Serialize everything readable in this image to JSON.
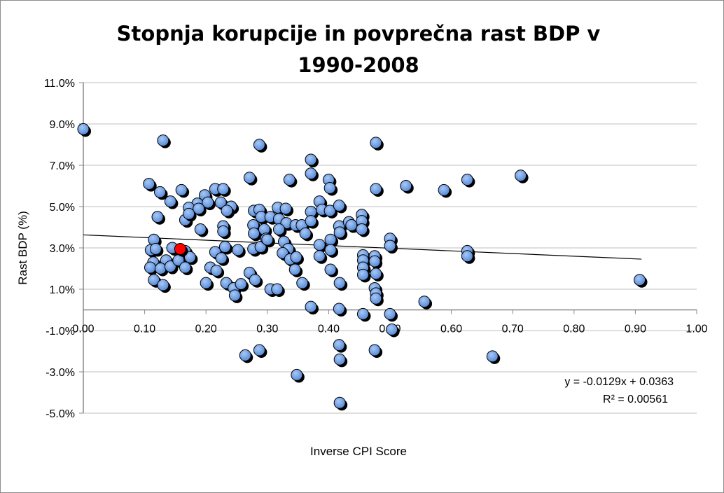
{
  "chart_data": {
    "type": "scatter",
    "title_lines": [
      "Stopnja korupcije in povprečna rast BDP v",
      "1990-2008"
    ],
    "xlabel": "Inverse CPI Score",
    "ylabel": "Rast BDP (%)",
    "xlim": [
      0,
      1
    ],
    "ylim": [
      -5,
      11
    ],
    "x_ticks": [
      "0.00",
      "0.10",
      "0.20",
      "0.30",
      "0.40",
      "0.50",
      "0.60",
      "0.70",
      "0.80",
      "0.90",
      "1.00"
    ],
    "y_ticks": [
      "-5.0%",
      "-3.0%",
      "-1.0%",
      "1.0%",
      "3.0%",
      "5.0%",
      "7.0%",
      "9.0%",
      "11.0%"
    ],
    "grid": "horizontal",
    "y_unit": "percent",
    "colors": {
      "marker": "#6d9de0",
      "highlight": "#ff0000",
      "trendline": "#000000",
      "grid": "#bfbfbf"
    },
    "highlight_point": {
      "x": 0.158,
      "y": 2.95
    },
    "points": [
      [
        0.0,
        8.75
      ],
      [
        0.13,
        8.2
      ],
      [
        0.287,
        7.99
      ],
      [
        0.477,
        8.09
      ],
      [
        0.371,
        7.27
      ],
      [
        0.371,
        6.6
      ],
      [
        0.336,
        6.3
      ],
      [
        0.271,
        6.4
      ],
      [
        0.4,
        6.3
      ],
      [
        0.402,
        5.9
      ],
      [
        0.477,
        5.85
      ],
      [
        0.526,
        6.0
      ],
      [
        0.588,
        5.8
      ],
      [
        0.626,
        6.3
      ],
      [
        0.713,
        6.5
      ],
      [
        0.107,
        6.1
      ],
      [
        0.125,
        5.7
      ],
      [
        0.142,
        5.25
      ],
      [
        0.16,
        5.8
      ],
      [
        0.198,
        5.55
      ],
      [
        0.215,
        5.85
      ],
      [
        0.228,
        5.85
      ],
      [
        0.186,
        5.15
      ],
      [
        0.203,
        5.2
      ],
      [
        0.224,
        5.2
      ],
      [
        0.241,
        5.0
      ],
      [
        0.172,
        4.95
      ],
      [
        0.188,
        4.9
      ],
      [
        0.234,
        4.8
      ],
      [
        0.121,
        4.5
      ],
      [
        0.166,
        4.35
      ],
      [
        0.172,
        4.65
      ],
      [
        0.191,
        3.9
      ],
      [
        0.228,
        4.05
      ],
      [
        0.228,
        3.8
      ],
      [
        0.115,
        3.4
      ],
      [
        0.11,
        2.9
      ],
      [
        0.118,
        2.95
      ],
      [
        0.145,
        3.0
      ],
      [
        0.166,
        2.85
      ],
      [
        0.174,
        2.55
      ],
      [
        0.114,
        2.3
      ],
      [
        0.109,
        2.05
      ],
      [
        0.135,
        2.4
      ],
      [
        0.126,
        2.0
      ],
      [
        0.142,
        2.1
      ],
      [
        0.155,
        2.4
      ],
      [
        0.166,
        2.05
      ],
      [
        0.115,
        1.45
      ],
      [
        0.13,
        1.2
      ],
      [
        0.2,
        1.3
      ],
      [
        0.207,
        2.05
      ],
      [
        0.215,
        2.8
      ],
      [
        0.217,
        1.9
      ],
      [
        0.225,
        2.5
      ],
      [
        0.233,
        1.3
      ],
      [
        0.231,
        3.05
      ],
      [
        0.245,
        1.05
      ],
      [
        0.247,
        0.7
      ],
      [
        0.252,
        2.9
      ],
      [
        0.257,
        1.25
      ],
      [
        0.277,
        2.95
      ],
      [
        0.271,
        1.8
      ],
      [
        0.28,
        1.45
      ],
      [
        0.264,
        -2.2
      ],
      [
        0.287,
        -1.95
      ],
      [
        0.278,
        4.8
      ],
      [
        0.277,
        4.1
      ],
      [
        0.287,
        4.85
      ],
      [
        0.29,
        4.5
      ],
      [
        0.278,
        3.7
      ],
      [
        0.295,
        3.9
      ],
      [
        0.289,
        3.05
      ],
      [
        0.298,
        3.45
      ],
      [
        0.305,
        4.5
      ],
      [
        0.317,
        4.95
      ],
      [
        0.33,
        4.9
      ],
      [
        0.319,
        4.4
      ],
      [
        0.331,
        4.2
      ],
      [
        0.319,
        3.9
      ],
      [
        0.327,
        3.3
      ],
      [
        0.334,
        2.95
      ],
      [
        0.3,
        3.4
      ],
      [
        0.325,
        2.75
      ],
      [
        0.337,
        2.45
      ],
      [
        0.305,
        1.0
      ],
      [
        0.316,
        1.0
      ],
      [
        0.347,
        2.55
      ],
      [
        0.345,
        1.95
      ],
      [
        0.357,
        1.3
      ],
      [
        0.348,
        -3.15
      ],
      [
        0.346,
        4.1
      ],
      [
        0.356,
        4.1
      ],
      [
        0.362,
        3.7
      ],
      [
        0.371,
        4.75
      ],
      [
        0.371,
        4.3
      ],
      [
        0.385,
        5.25
      ],
      [
        0.389,
        4.85
      ],
      [
        0.385,
        3.15
      ],
      [
        0.385,
        2.6
      ],
      [
        0.403,
        3.4
      ],
      [
        0.403,
        2.9
      ],
      [
        0.403,
        1.95
      ],
      [
        0.371,
        0.15
      ],
      [
        0.402,
        4.8
      ],
      [
        0.417,
        5.05
      ],
      [
        0.417,
        4.05
      ],
      [
        0.418,
        3.75
      ],
      [
        0.418,
        1.3
      ],
      [
        0.417,
        0.05
      ],
      [
        0.417,
        -1.7
      ],
      [
        0.418,
        -2.4
      ],
      [
        0.418,
        -4.5
      ],
      [
        0.433,
        4.25
      ],
      [
        0.437,
        4.1
      ],
      [
        0.454,
        4.6
      ],
      [
        0.454,
        4.3
      ],
      [
        0.454,
        3.9
      ],
      [
        0.456,
        2.65
      ],
      [
        0.456,
        2.4
      ],
      [
        0.456,
        2.05
      ],
      [
        0.456,
        1.7
      ],
      [
        0.456,
        -0.2
      ],
      [
        0.475,
        2.6
      ],
      [
        0.475,
        2.35
      ],
      [
        0.477,
        1.75
      ],
      [
        0.475,
        1.05
      ],
      [
        0.477,
        0.8
      ],
      [
        0.477,
        0.55
      ],
      [
        0.475,
        -1.95
      ],
      [
        0.5,
        3.45
      ],
      [
        0.5,
        3.1
      ],
      [
        0.5,
        -0.2
      ],
      [
        0.503,
        -0.95
      ],
      [
        0.556,
        0.4
      ],
      [
        0.626,
        2.85
      ],
      [
        0.626,
        2.6
      ],
      [
        0.667,
        -2.25
      ],
      [
        0.907,
        1.45
      ]
    ],
    "trendline": {
      "slope": -0.0129,
      "intercept": 0.0363,
      "x_range": [
        0,
        0.91
      ]
    },
    "annotations": [
      "y = -0.0129x + 0.0363",
      "R² = 0.00561"
    ]
  }
}
